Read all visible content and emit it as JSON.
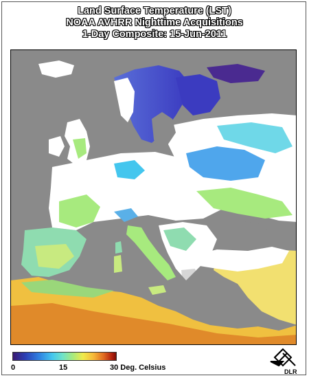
{
  "header": {
    "title_line1": "Land Surface Temperature (LST)",
    "title_line2": "NOAA AVHRR Nighttime Acquisitions",
    "title_line3": "1-Day Composite: 15-Jun-2011"
  },
  "legend": {
    "tick_min": "0",
    "tick_mid": "15",
    "tick_max_unit": "30 Deg. Celsius",
    "scale_min": 0,
    "scale_max": 30,
    "colors": [
      "#3b1a73",
      "#2b3fb5",
      "#2f7fe0",
      "#44c6ee",
      "#6fe3c9",
      "#a7ea7e",
      "#f0ea4a",
      "#f6b93a",
      "#e06a20",
      "#b2200e"
    ]
  },
  "logo": {
    "text": "DLR",
    "icon": "dlr-logo-icon"
  },
  "map": {
    "sea_color": "#8a8a8a",
    "cloud_color": "#ffffff",
    "land_colors": {
      "cold": "#2f7fe0",
      "cool": "#44c6ee",
      "mild": "#a7ea7e",
      "warm": "#f0ea4a",
      "hot": "#e06a20"
    }
  }
}
